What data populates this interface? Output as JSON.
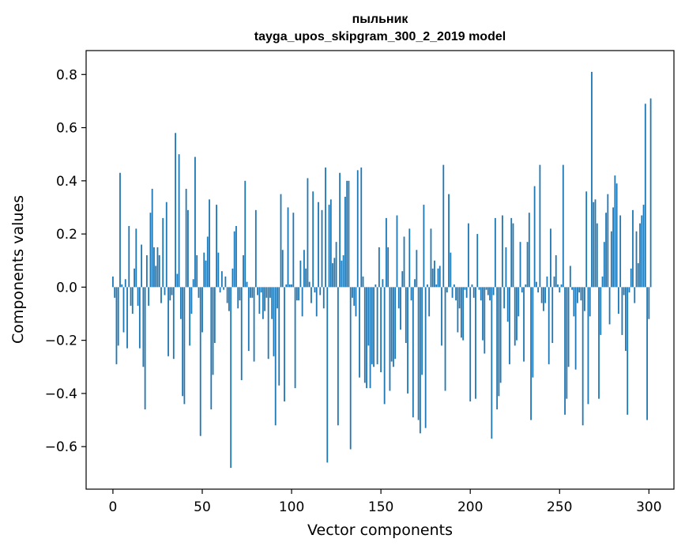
{
  "chart_data": {
    "type": "bar",
    "title": "пыльник",
    "subtitle": "tayga_upos_skipgram_300_2_2019 model",
    "xlabel": "Vector components",
    "ylabel": "Components values",
    "xlim": [
      -15,
      314
    ],
    "ylim": [
      -0.76,
      0.89
    ],
    "xticks": [
      0,
      50,
      100,
      150,
      200,
      250,
      300
    ],
    "xtick_labels": [
      "0",
      "50",
      "100",
      "150",
      "200",
      "250",
      "300"
    ],
    "yticks": [
      -0.6,
      -0.4,
      -0.2,
      0.0,
      0.2,
      0.4,
      0.6,
      0.8
    ],
    "ytick_labels": [
      "−0.6",
      "−0.4",
      "−0.2",
      "0.0",
      "0.2",
      "0.4",
      "0.6",
      "0.8"
    ],
    "grid": false,
    "bar_color": "#1f77b4",
    "values": [
      0.04,
      -0.04,
      -0.29,
      -0.22,
      0.43,
      0.01,
      -0.17,
      0.03,
      -0.23,
      0.23,
      -0.07,
      -0.1,
      0.07,
      0.22,
      -0.07,
      -0.23,
      0.16,
      -0.3,
      -0.46,
      0.12,
      -0.07,
      0.28,
      0.37,
      0.15,
      0.08,
      0.15,
      0.12,
      -0.06,
      0.26,
      -0.03,
      0.32,
      -0.26,
      -0.05,
      -0.03,
      -0.27,
      0.58,
      0.05,
      0.5,
      -0.12,
      -0.41,
      -0.44,
      0.37,
      0.29,
      -0.22,
      -0.1,
      0.03,
      0.49,
      0.12,
      -0.04,
      -0.56,
      -0.17,
      0.13,
      0.1,
      0.19,
      0.33,
      -0.46,
      -0.33,
      -0.21,
      0.31,
      0.13,
      -0.02,
      0.06,
      -0.01,
      0.04,
      -0.06,
      -0.09,
      -0.68,
      0.07,
      0.21,
      0.23,
      -0.08,
      -0.05,
      -0.35,
      0.12,
      0.4,
      0.02,
      -0.24,
      -0.04,
      -0.04,
      -0.28,
      0.29,
      -0.03,
      -0.1,
      -0.02,
      -0.12,
      -0.09,
      -0.04,
      -0.27,
      -0.04,
      -0.12,
      -0.26,
      -0.52,
      -0.08,
      -0.37,
      0.35,
      0.14,
      -0.43,
      0.01,
      0.3,
      0.01,
      0.01,
      0.28,
      -0.38,
      -0.05,
      -0.05,
      0.1,
      -0.11,
      0.14,
      0.07,
      0.41,
      0.02,
      -0.06,
      0.36,
      -0.02,
      -0.11,
      0.32,
      -0.03,
      0.29,
      -0.08,
      0.45,
      -0.66,
      0.31,
      0.33,
      0.09,
      0.11,
      0.17,
      -0.52,
      0.43,
      0.1,
      0.12,
      0.34,
      0.4,
      0.4,
      -0.61,
      -0.04,
      -0.07,
      -0.11,
      0.44,
      -0.34,
      0.45,
      0.04,
      -0.36,
      -0.38,
      -0.22,
      -0.38,
      -0.29,
      -0.3,
      0.01,
      -0.29,
      0.15,
      -0.32,
      0.03,
      -0.44,
      0.26,
      0.15,
      -0.39,
      -0.28,
      -0.3,
      -0.27,
      0.27,
      -0.08,
      -0.16,
      0.06,
      0.19,
      -0.21,
      -0.4,
      0.22,
      -0.05,
      -0.49,
      0.03,
      0.14,
      -0.5,
      -0.55,
      -0.33,
      0.31,
      -0.53,
      0.01,
      -0.11,
      0.22,
      0.07,
      0.1,
      0.01,
      0.07,
      0.08,
      -0.22,
      0.46,
      -0.39,
      -0.02,
      0.35,
      0.13,
      -0.04,
      0.01,
      -0.05,
      -0.17,
      -0.08,
      -0.19,
      -0.2,
      -0.01,
      -0.04,
      0.24,
      -0.43,
      0.01,
      -0.04,
      -0.42,
      0.2,
      -0.01,
      -0.05,
      -0.2,
      -0.25,
      -0.01,
      -0.03,
      -0.05,
      -0.57,
      -0.03,
      0.26,
      -0.46,
      -0.41,
      -0.36,
      0.27,
      -0.08,
      0.15,
      -0.13,
      -0.29,
      0.26,
      0.24,
      -0.22,
      -0.2,
      -0.11,
      0.17,
      -0.02,
      -0.28,
      0.01,
      0.17,
      0.28,
      -0.5,
      -0.34,
      0.38,
      0.02,
      -0.02,
      0.46,
      -0.06,
      -0.09,
      -0.06,
      0.04,
      -0.29,
      0.22,
      -0.21,
      0.04,
      0.12,
      0.01,
      -0.02,
      0.01,
      0.46,
      -0.48,
      -0.42,
      -0.3,
      0.08,
      -0.01,
      -0.11,
      -0.31,
      -0.06,
      -0.02,
      -0.05,
      -0.52,
      -0.09,
      0.36,
      -0.44,
      -0.11,
      0.81,
      0.32,
      0.33,
      0.24,
      -0.42,
      -0.18,
      0.04,
      0.17,
      0.28,
      0.35,
      -0.14,
      0.21,
      0.3,
      0.42,
      0.39,
      -0.1,
      0.27,
      -0.18,
      -0.03,
      -0.24,
      -0.48,
      -0.02,
      0.07,
      0.29,
      -0.06,
      0.21,
      0.09,
      0.24,
      0.27,
      0.31,
      0.69,
      -0.5,
      -0.12,
      0.71
    ]
  }
}
